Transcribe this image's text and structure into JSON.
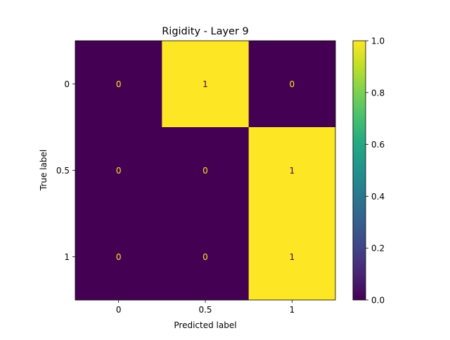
{
  "chart_data": {
    "type": "heatmap",
    "title": "Rigidity - Layer 9",
    "xlabel": "Predicted label",
    "ylabel": "True label",
    "x_categories": [
      "0",
      "0.5",
      "1"
    ],
    "y_categories": [
      "0",
      "0.5",
      "1"
    ],
    "values": [
      [
        0,
        1,
        0
      ],
      [
        0,
        0,
        1
      ],
      [
        0,
        0,
        1
      ]
    ],
    "cell_labels": [
      [
        "0",
        "1",
        "0"
      ],
      [
        "0",
        "0",
        "1"
      ],
      [
        "0",
        "0",
        "1"
      ]
    ],
    "colorbar": {
      "range": [
        0.0,
        1.0
      ],
      "ticks": [
        "0.0",
        "0.2",
        "0.4",
        "0.6",
        "0.8",
        "1.0"
      ],
      "colormap": "viridis"
    },
    "colors": {
      "low": "#440154",
      "high": "#fde725",
      "text_on_low": "#fde725",
      "text_on_high": "#440154"
    }
  }
}
